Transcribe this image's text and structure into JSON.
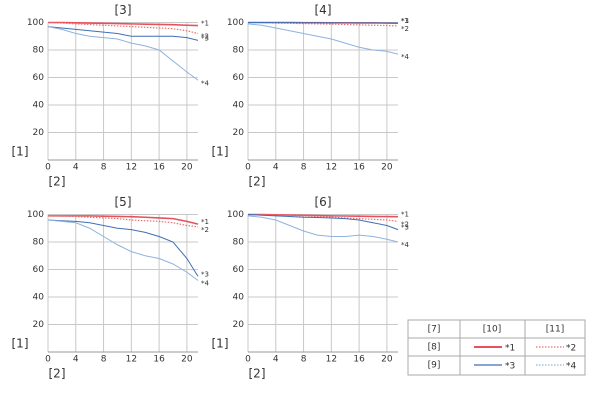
{
  "chart_data": [
    {
      "type": "line",
      "title": "[3]",
      "x_label": "[2]",
      "y_label": "[1]",
      "x": [
        0,
        2,
        4,
        6,
        8,
        10,
        12,
        14,
        16,
        18,
        20,
        21.6
      ],
      "xlim": [
        0,
        21.6
      ],
      "ylim": [
        0,
        100
      ],
      "xticks": [
        0,
        4,
        8,
        12,
        16,
        20
      ],
      "yticks": [
        20,
        40,
        60,
        80,
        100
      ],
      "grid": true,
      "series": [
        {
          "name": "*1",
          "color": "#e8505b",
          "style": "solid",
          "values": [
            100,
            100,
            99.8,
            99.6,
            99.4,
            99.2,
            99,
            98.8,
            98.6,
            98.4,
            98,
            97.8
          ]
        },
        {
          "name": "*2",
          "color": "#e87070",
          "style": "dotted",
          "values": [
            100,
            99.6,
            99,
            98.5,
            98,
            97.5,
            97,
            96.5,
            96,
            95.5,
            94,
            92
          ]
        },
        {
          "name": "*3",
          "color": "#3f6fb5",
          "style": "solid",
          "values": [
            97,
            96,
            95,
            94,
            93,
            92,
            90,
            90,
            90,
            90,
            89,
            87
          ]
        },
        {
          "name": "*4",
          "color": "#8fb3dd",
          "style": "solid",
          "values": [
            97,
            95,
            92,
            90,
            89,
            88,
            85,
            83,
            80,
            72,
            64,
            58
          ]
        }
      ]
    },
    {
      "type": "line",
      "title": "[4]",
      "x_label": "[2]",
      "y_label": "[1]",
      "x": [
        0,
        2,
        4,
        6,
        8,
        10,
        12,
        14,
        16,
        18,
        20,
        21.6
      ],
      "xlim": [
        0,
        21.6
      ],
      "ylim": [
        0,
        100
      ],
      "xticks": [
        0,
        4,
        8,
        12,
        16,
        20
      ],
      "yticks": [
        20,
        40,
        60,
        80,
        100
      ],
      "grid": true,
      "series": [
        {
          "name": "*1",
          "color": "#e8505b",
          "style": "solid",
          "values": [
            100,
            100,
            100,
            100,
            99.9,
            99.9,
            99.8,
            99.8,
            99.7,
            99.7,
            99.6,
            99.5
          ]
        },
        {
          "name": "*2",
          "color": "#e87070",
          "style": "dotted",
          "values": [
            100,
            99.8,
            99.6,
            99.4,
            99.2,
            99,
            98.8,
            98.5,
            98.3,
            98,
            97.8,
            97.5
          ]
        },
        {
          "name": "*3",
          "color": "#3f6fb5",
          "style": "solid",
          "values": [
            100,
            100,
            99.9,
            99.9,
            99.8,
            99.8,
            99.8,
            99.7,
            99.7,
            99.7,
            99.6,
            99.6
          ]
        },
        {
          "name": "*4",
          "color": "#8fb3dd",
          "style": "solid",
          "values": [
            99,
            98,
            96,
            94,
            92,
            90,
            88,
            85,
            82,
            80,
            79,
            77
          ]
        }
      ]
    },
    {
      "type": "line",
      "title": "[5]",
      "x_label": "[2]",
      "y_label": "[1]",
      "x": [
        0,
        2,
        4,
        6,
        8,
        10,
        12,
        14,
        16,
        18,
        20,
        21.6
      ],
      "xlim": [
        0,
        21.6
      ],
      "ylim": [
        0,
        100
      ],
      "xticks": [
        0,
        4,
        8,
        12,
        16,
        20
      ],
      "yticks": [
        20,
        40,
        60,
        80,
        100
      ],
      "grid": true,
      "series": [
        {
          "name": "*1",
          "color": "#e8505b",
          "style": "solid",
          "values": [
            99,
            99,
            99,
            99,
            98.8,
            98.6,
            98.4,
            98,
            97.5,
            97,
            95,
            93
          ]
        },
        {
          "name": "*2",
          "color": "#e87070",
          "style": "dotted",
          "values": [
            99,
            98.8,
            98.5,
            98,
            97.5,
            97,
            96,
            95.5,
            95,
            94,
            92,
            91
          ]
        },
        {
          "name": "*3",
          "color": "#3f6fb5",
          "style": "solid",
          "values": [
            96,
            95.5,
            95,
            94,
            92,
            90,
            89,
            87,
            84,
            80,
            68,
            55
          ]
        },
        {
          "name": "*4",
          "color": "#8fb3dd",
          "style": "solid",
          "values": [
            96,
            95,
            94,
            90,
            84,
            78,
            73,
            70,
            68,
            64,
            58,
            52
          ]
        }
      ]
    },
    {
      "type": "line",
      "title": "[6]",
      "x_label": "[2]",
      "y_label": "[1]",
      "x": [
        0,
        2,
        4,
        6,
        8,
        10,
        12,
        14,
        16,
        18,
        20,
        21.6
      ],
      "xlim": [
        0,
        21.6
      ],
      "ylim": [
        0,
        100
      ],
      "xticks": [
        0,
        4,
        8,
        12,
        16,
        20
      ],
      "yticks": [
        20,
        40,
        60,
        80,
        100
      ],
      "grid": true,
      "series": [
        {
          "name": "*1",
          "color": "#e8505b",
          "style": "solid",
          "values": [
            100,
            100,
            99.8,
            99.6,
            99.4,
            99.2,
            99,
            98.9,
            98.8,
            98.6,
            98.5,
            98.4
          ]
        },
        {
          "name": "*2",
          "color": "#e87070",
          "style": "dotted",
          "values": [
            100,
            99.8,
            99.6,
            99.3,
            99,
            98.5,
            98,
            97.5,
            97,
            96.5,
            96,
            95
          ]
        },
        {
          "name": "*3",
          "color": "#3f6fb5",
          "style": "solid",
          "values": [
            100,
            99.5,
            99,
            98.5,
            98,
            97.8,
            97.5,
            97,
            96,
            94,
            92,
            89
          ]
        },
        {
          "name": "*4",
          "color": "#8fb3dd",
          "style": "solid",
          "values": [
            99,
            98,
            96,
            92,
            88,
            85,
            84,
            84,
            85,
            84,
            82,
            80
          ]
        }
      ]
    }
  ],
  "legend": {
    "header": [
      "[7]",
      "[10]",
      "[11]"
    ],
    "rows": [
      "[8]",
      "[9]"
    ]
  }
}
